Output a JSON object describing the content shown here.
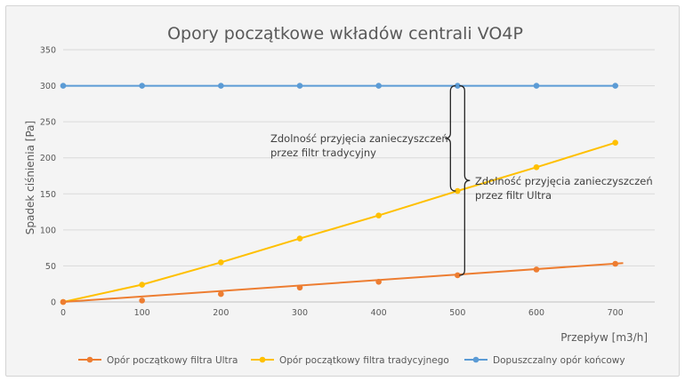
{
  "chart_data": {
    "type": "line",
    "title": "Opory początkowe wkładów centrali VO4P",
    "xlabel": "Przepływ [m3/h]",
    "ylabel": "Spadek ciśnienia [Pa]",
    "xlim": [
      0,
      750
    ],
    "ylim": [
      0,
      350
    ],
    "x_ticks": [
      0,
      100,
      200,
      300,
      400,
      500,
      600,
      700
    ],
    "y_ticks": [
      0,
      50,
      100,
      150,
      200,
      250,
      300,
      350
    ],
    "grid": "horizontal",
    "legend_position": "bottom",
    "series": [
      {
        "name": "Opór początkowy filtra Ultra",
        "color": "#ed7d31",
        "x": [
          0,
          100,
          200,
          300,
          400,
          500,
          600,
          700
        ],
        "y": [
          0,
          2,
          11,
          20,
          28,
          37,
          45,
          53
        ],
        "trend_x": [
          0,
          710
        ],
        "trend_y": [
          0,
          54
        ]
      },
      {
        "name": "Opór początkowy filtra tradycyjnego",
        "color": "#ffc000",
        "x": [
          0,
          100,
          200,
          300,
          400,
          500,
          600,
          700
        ],
        "y": [
          0,
          24,
          55,
          88,
          120,
          154,
          187,
          221
        ]
      },
      {
        "name": "Dopuszczalny opór końcowy",
        "color": "#5b9bd5",
        "x": [
          0,
          100,
          200,
          300,
          400,
          500,
          600,
          700
        ],
        "y": [
          300,
          300,
          300,
          300,
          300,
          300,
          300,
          300
        ]
      }
    ],
    "annotations": [
      {
        "lines": [
          "Zdolność przyjęcia zanieczyszczeń",
          "przez filtr tradycyjny"
        ],
        "bracket_x": 500,
        "bracket_y": [
          154,
          300
        ]
      },
      {
        "lines": [
          "Zdolność przyjęcia zanieczyszczeń",
          "przez filtr Ultra"
        ],
        "bracket_x": 500,
        "bracket_y": [
          37,
          300
        ]
      }
    ]
  }
}
